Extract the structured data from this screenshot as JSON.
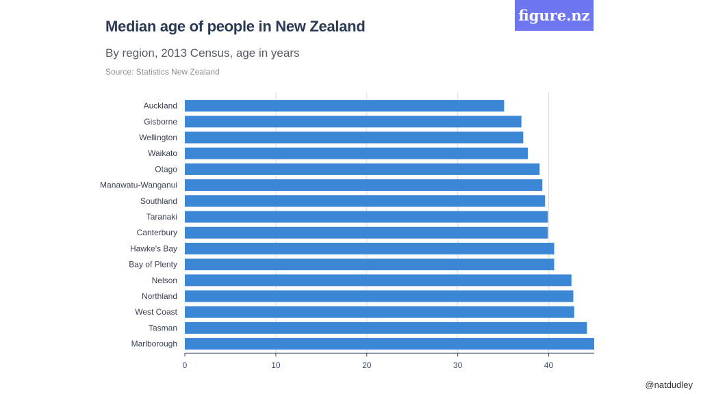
{
  "header": {
    "title": "Median age of people in New Zealand",
    "subtitle": "By region, 2013 Census, age in years",
    "source": "Source: Statistics New Zealand"
  },
  "logo": {
    "text": "figure.nz",
    "color": "#6f77f0"
  },
  "footer": {
    "handle": "@natdudley"
  },
  "colors": {
    "bar": "#3b87d6",
    "grid": "#d9dce1",
    "axis": "#3a4a6a"
  },
  "chart_data": {
    "type": "bar",
    "orientation": "horizontal",
    "title": "Median age of people in New Zealand",
    "subtitle": "By region, 2013 Census, age in years",
    "categories": [
      "Auckland",
      "Gisborne",
      "Wellington",
      "Waikato",
      "Otago",
      "Manawatu-Wanganui",
      "Southland",
      "Taranaki",
      "Canterbury",
      "Hawke's Bay",
      "Bay of Plenty",
      "Nelson",
      "Northland",
      "West Coast",
      "Tasman",
      "Marlborough"
    ],
    "values": [
      35.1,
      37.0,
      37.2,
      37.7,
      39.0,
      39.3,
      39.6,
      39.9,
      39.9,
      40.6,
      40.6,
      42.5,
      42.7,
      42.8,
      44.2,
      45.0
    ],
    "xlim": [
      0,
      45
    ],
    "xticks": [
      0,
      10,
      20,
      30,
      40
    ],
    "grid": true
  }
}
